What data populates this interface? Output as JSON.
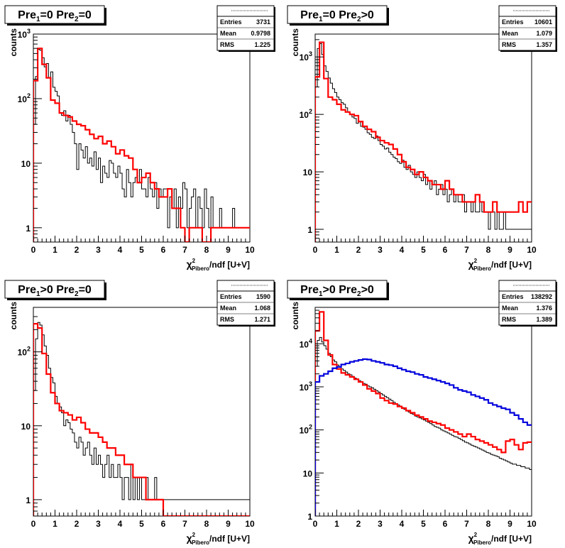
{
  "chart_data": [
    {
      "type": "line",
      "title_parts": [
        "Pre",
        "1",
        "=0  Pre",
        "2",
        "=0"
      ],
      "stats": {
        "Entries": "3731",
        "Mean": "0.9798",
        "RMS": "1.225"
      },
      "ylabel": "counts",
      "xlabel_parts": [
        "χ",
        "2",
        "Pibero",
        "/ndf [U+V]"
      ],
      "xlim": [
        0,
        10
      ],
      "ylim_log": [
        0.6,
        1000
      ],
      "yticks": [
        {
          "v": 1,
          "t": "1"
        },
        {
          "v": 10,
          "t": "10"
        },
        {
          "v": 100,
          "t": "10",
          "exp": "2"
        },
        {
          "v": 1000,
          "t": "10",
          "exp": "3"
        }
      ],
      "xticks": [
        "0",
        "1",
        "2",
        "3",
        "4",
        "5",
        "6",
        "7",
        "8",
        "9",
        "10"
      ],
      "series": [
        {
          "color": "#000000",
          "width": 1,
          "binw": 0.1,
          "values": [
            40,
            220,
            580,
            560,
            430,
            310,
            350,
            210,
            260,
            150,
            130,
            110,
            60,
            55,
            65,
            45,
            55,
            40,
            30,
            20,
            8,
            20,
            16,
            12,
            18,
            10,
            12,
            9,
            15,
            8,
            12,
            5,
            9,
            7,
            6,
            11,
            10,
            7,
            6,
            9,
            7,
            4,
            3,
            8,
            5,
            3,
            5,
            6,
            5,
            8,
            4,
            4,
            3,
            6,
            4,
            3,
            5,
            2,
            4,
            3,
            4,
            4,
            1,
            3,
            2,
            4,
            1,
            3,
            2,
            5,
            4,
            1,
            2,
            3,
            4,
            1,
            3,
            2,
            1,
            4,
            2,
            1,
            3,
            1,
            1,
            1,
            2,
            1,
            1,
            1,
            1,
            1,
            2,
            1,
            1,
            1,
            1,
            1,
            1,
            1
          ]
        },
        {
          "color": "#ff0000",
          "width": 2.2,
          "binw": 0.2,
          "values": [
            190,
            600,
            340,
            210,
            95,
            85,
            60,
            55,
            52,
            45,
            40,
            38,
            33,
            28,
            24,
            26,
            20,
            22,
            18,
            14,
            16,
            13,
            12,
            8,
            5,
            6,
            7,
            5,
            4,
            3,
            3,
            4,
            2,
            2,
            1,
            0.6,
            1,
            1,
            1,
            0.6,
            0.6,
            1,
            1,
            1,
            1,
            1,
            1,
            1,
            1,
            1
          ]
        }
      ]
    },
    {
      "type": "line",
      "title_parts": [
        "Pre",
        "1",
        "=0  Pre",
        "2",
        ">0"
      ],
      "stats": {
        "Entries": "10601",
        "Mean": "1.079",
        "RMS": "1.357"
      },
      "ylabel": "counts",
      "xlabel_parts": [
        "χ",
        "2",
        "Pibero",
        "/ndf [U+V]"
      ],
      "xlim": [
        0,
        10
      ],
      "ylim_log": [
        0.6,
        2500
      ],
      "yticks": [
        {
          "v": 1,
          "t": "1"
        },
        {
          "v": 10,
          "t": "10"
        },
        {
          "v": 100,
          "t": "10",
          "exp": "2"
        },
        {
          "v": 1000,
          "t": "10",
          "exp": "3"
        }
      ],
      "xticks": [
        "0",
        "1",
        "2",
        "3",
        "4",
        "5",
        "6",
        "7",
        "8",
        "9",
        "10"
      ],
      "series": [
        {
          "color": "#000000",
          "width": 1,
          "binw": 0.1,
          "values": [
            300,
            1400,
            1700,
            1100,
            700,
            560,
            430,
            350,
            280,
            240,
            200,
            180,
            160,
            150,
            130,
            110,
            100,
            90,
            85,
            70,
            75,
            62,
            60,
            55,
            48,
            45,
            40,
            38,
            42,
            35,
            30,
            28,
            25,
            26,
            22,
            20,
            18,
            17,
            15,
            14,
            16,
            12,
            11,
            13,
            10,
            9,
            8,
            10,
            8,
            7,
            9,
            6,
            7,
            5,
            6,
            7,
            4,
            5,
            6,
            4,
            5,
            3,
            4,
            5,
            3,
            4,
            3,
            3,
            4,
            2,
            3,
            3,
            2,
            3,
            2,
            2,
            3,
            2,
            2,
            2,
            1,
            2,
            2,
            1,
            2,
            1,
            1,
            2,
            1,
            1,
            1,
            1,
            1,
            1,
            1,
            1,
            1,
            1,
            1,
            1
          ]
        },
        {
          "color": "#ff0000",
          "width": 2.2,
          "binw": 0.2,
          "values": [
            450,
            1800,
            420,
            200,
            180,
            150,
            120,
            110,
            100,
            95,
            75,
            62,
            55,
            50,
            40,
            35,
            32,
            30,
            25,
            20,
            15,
            12,
            11,
            9,
            10,
            8,
            7,
            6,
            6,
            5,
            7,
            5,
            4,
            4,
            3,
            3,
            3,
            4,
            3,
            2,
            2,
            3,
            2,
            2,
            2,
            2,
            2,
            3,
            2,
            3
          ]
        }
      ]
    },
    {
      "type": "line",
      "title_parts": [
        "Pre",
        "1",
        ">0  Pre",
        "2",
        "=0"
      ],
      "stats": {
        "Entries": "1590",
        "Mean": "1.068",
        "RMS": "1.271"
      },
      "ylabel": "counts",
      "xlabel_parts": [
        "χ",
        "2",
        "Pibero",
        "/ndf [U+V]"
      ],
      "xlim": [
        0,
        10
      ],
      "ylim_log": [
        0.6,
        400
      ],
      "yticks": [
        {
          "v": 1,
          "t": "1"
        },
        {
          "v": 10,
          "t": "10"
        },
        {
          "v": 100,
          "t": "10",
          "exp": "2"
        }
      ],
      "xticks": [
        "0",
        "1",
        "2",
        "3",
        "4",
        "5",
        "6",
        "7",
        "8",
        "9",
        "10"
      ],
      "series": [
        {
          "color": "#000000",
          "width": 1,
          "binw": 0.1,
          "values": [
            30,
            150,
            250,
            230,
            170,
            120,
            90,
            60,
            45,
            38,
            25,
            20,
            18,
            15,
            10,
            12,
            11,
            9,
            8,
            6,
            5,
            7,
            6,
            4,
            5,
            6,
            4,
            3,
            5,
            3,
            4,
            3,
            2,
            3,
            4,
            2,
            3,
            2,
            2,
            3,
            2,
            1,
            2,
            2,
            1,
            3,
            1,
            2,
            1,
            2,
            1,
            1,
            2,
            1,
            1,
            1,
            2,
            1,
            1,
            1,
            1,
            1,
            1,
            1,
            1,
            1,
            1,
            1,
            1,
            1,
            1,
            1,
            1,
            1,
            1,
            1,
            1,
            1,
            1,
            1,
            1,
            1,
            1,
            1,
            1,
            1,
            1,
            1,
            1,
            1,
            1,
            1,
            1,
            1,
            1,
            1,
            1,
            1,
            1,
            1
          ]
        },
        {
          "color": "#ff0000",
          "width": 2.2,
          "binw": 0.2,
          "values": [
            240,
            210,
            95,
            50,
            28,
            20,
            16,
            15,
            14,
            12,
            13,
            11,
            9,
            8,
            8,
            7,
            6,
            5,
            5,
            4,
            4,
            3,
            3,
            2,
            2,
            2,
            1,
            1,
            1,
            1,
            0.6,
            0.6,
            0.6,
            0.6,
            0.6,
            0.6,
            0.6,
            0.6,
            0.6,
            0.6,
            0.6,
            0.6,
            0.6,
            0.6,
            0.6,
            0.6,
            0.6,
            0.6,
            0.6,
            0.6
          ]
        }
      ]
    },
    {
      "type": "line",
      "title_parts": [
        "Pre",
        "1",
        ">0  Pre",
        "2",
        ">0"
      ],
      "stats": {
        "Entries": "138292",
        "Mean": "1.376",
        "RMS": "1.389"
      },
      "ylabel": "counts",
      "xlabel_parts": [
        "χ",
        "2",
        "Pibero",
        "/ndf [U+V]"
      ],
      "xlim": [
        0,
        10
      ],
      "ylim_log": [
        1,
        70000
      ],
      "yticks": [
        {
          "v": 1,
          "t": "1"
        },
        {
          "v": 10,
          "t": "10"
        },
        {
          "v": 100,
          "t": "10",
          "exp": "2"
        },
        {
          "v": 1000,
          "t": "10",
          "exp": "3"
        },
        {
          "v": 10000,
          "t": "10",
          "exp": "4"
        }
      ],
      "xticks": [
        "0",
        "1",
        "2",
        "3",
        "4",
        "5",
        "6",
        "7",
        "8",
        "9",
        "10"
      ],
      "series": [
        {
          "color": "#000000",
          "width": 1,
          "binw": 0.1,
          "values": [
            3000,
            12000,
            14000,
            11000,
            9000,
            7500,
            6000,
            5000,
            4200,
            3800,
            3200,
            2900,
            2600,
            2400,
            2200,
            2000,
            1900,
            1750,
            1600,
            1500,
            1400,
            1300,
            1200,
            1150,
            1050,
            1000,
            950,
            880,
            820,
            760,
            700,
            650,
            600,
            560,
            520,
            480,
            440,
            410,
            380,
            350,
            330,
            300,
            280,
            260,
            240,
            230,
            210,
            200,
            190,
            180,
            170,
            160,
            150,
            140,
            130,
            120,
            115,
            110,
            100,
            95,
            90,
            85,
            80,
            75,
            70,
            68,
            64,
            60,
            56,
            52,
            50,
            47,
            44,
            42,
            40,
            38,
            36,
            34,
            32,
            30,
            29,
            27,
            26,
            25,
            24,
            22,
            21,
            20,
            19,
            18,
            17,
            16,
            16,
            15,
            15,
            14,
            14,
            13,
            13,
            12
          ]
        },
        {
          "color": "#ff0000",
          "width": 2.2,
          "binw": 0.2,
          "values": [
            20000,
            55000,
            12000,
            5500,
            3300,
            2600,
            2100,
            1900,
            1700,
            1500,
            1300,
            1100,
            900,
            800,
            700,
            550,
            480,
            420,
            400,
            350,
            320,
            280,
            250,
            220,
            200,
            180,
            160,
            150,
            140,
            130,
            110,
            100,
            90,
            80,
            70,
            80,
            70,
            60,
            55,
            50,
            45,
            40,
            35,
            30,
            55,
            60,
            45,
            35,
            50,
            52
          ]
        },
        {
          "color": "#0000dd",
          "width": 2.2,
          "binw": 0.2,
          "values": [
            1300,
            1800,
            2000,
            2300,
            2700,
            2900,
            3300,
            3500,
            3800,
            4000,
            4200,
            4400,
            4300,
            4000,
            3800,
            3600,
            3300,
            3200,
            3000,
            2700,
            2500,
            2300,
            2200,
            2000,
            1900,
            1700,
            1600,
            1500,
            1400,
            1300,
            1200,
            1100,
            950,
            850,
            800,
            750,
            650,
            600,
            550,
            500,
            420,
            380,
            350,
            320,
            300,
            250,
            220,
            180,
            150,
            130
          ]
        }
      ]
    }
  ]
}
